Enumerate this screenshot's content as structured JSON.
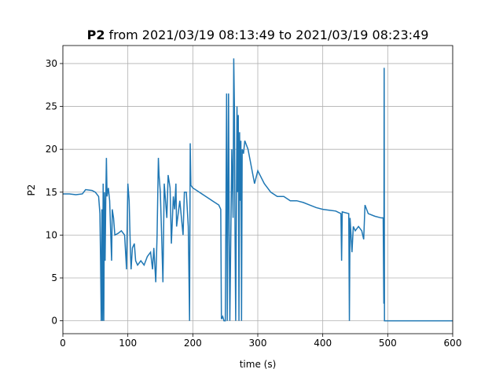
{
  "chart_data": {
    "type": "line",
    "title_bold": "P2",
    "title": "from 2021/03/19 08:13:49 to 2021/03/19 08:23:49",
    "x_label": "time (s)",
    "y_label": "P2",
    "xlim": [
      0,
      600
    ],
    "ylim": [
      -1.5,
      32.1
    ],
    "xticks": [
      0,
      100,
      200,
      300,
      400,
      500,
      600
    ],
    "yticks": [
      0,
      5,
      10,
      15,
      20,
      25,
      30
    ],
    "grid": true,
    "series": [
      {
        "color": "#1f77b4",
        "x": [
          0,
          10,
          20,
          30,
          35,
          45,
          50,
          55,
          57,
          58,
          59,
          60,
          61,
          62,
          63,
          64,
          65,
          66,
          67,
          68,
          70,
          72,
          75,
          76,
          78,
          80,
          85,
          90,
          95,
          98,
          100,
          102,
          103,
          104,
          105,
          107,
          110,
          112,
          115,
          120,
          125,
          130,
          135,
          138,
          140,
          143,
          145,
          147,
          148,
          150,
          152,
          154,
          156,
          158,
          160,
          162,
          165,
          167,
          170,
          172,
          174,
          175,
          180,
          185,
          187,
          190,
          193,
          195,
          196,
          197,
          200,
          210,
          220,
          230,
          240,
          243,
          244,
          246,
          248,
          250,
          252,
          253,
          255,
          256,
          257,
          260,
          262,
          263,
          264,
          265,
          266,
          268,
          269,
          270,
          271,
          272,
          273,
          274,
          275,
          276,
          278,
          280,
          285,
          290,
          295,
          300,
          310,
          320,
          330,
          340,
          350,
          360,
          370,
          380,
          390,
          400,
          410,
          420,
          428,
          429,
          430,
          440,
          441,
          442,
          445,
          447,
          450,
          455,
          460,
          463,
          465,
          470,
          480,
          490,
          493,
          494,
          494.5,
          495,
          500,
          600
        ],
        "values": [
          14.8,
          14.8,
          14.7,
          14.8,
          15.3,
          15.2,
          15.0,
          14.5,
          12.5,
          7,
          0,
          13,
          0,
          16,
          0,
          15,
          7,
          14,
          19,
          14.5,
          15.5,
          14,
          7,
          13,
          12,
          10,
          10.2,
          10.5,
          10,
          6,
          16,
          14,
          11,
          8,
          6,
          8.5,
          9,
          7,
          6.5,
          7,
          6.5,
          7.5,
          8,
          6,
          8.5,
          4.5,
          10,
          19,
          17,
          15,
          10,
          4.5,
          16,
          14,
          12,
          17,
          15.5,
          9,
          14.5,
          13,
          16,
          11,
          14,
          10,
          15,
          15,
          11,
          0,
          20.7,
          15.8,
          15.5,
          15,
          14.5,
          14,
          13.5,
          13,
          0.2,
          0.5,
          0,
          0,
          26.5,
          0,
          26.5,
          10,
          0,
          20,
          12,
          30.6,
          25,
          10,
          0,
          25,
          15,
          24,
          0,
          22,
          14,
          21,
          0,
          20,
          19.5,
          21,
          20,
          18,
          16,
          17.5,
          16,
          15,
          14.5,
          14.5,
          14,
          14,
          13.8,
          13.5,
          13.2,
          13,
          12.9,
          12.8,
          12.5,
          7,
          12.7,
          12.5,
          0,
          12,
          8,
          11,
          10.5,
          11,
          10.5,
          9.5,
          13.5,
          12.5,
          12.2,
          12,
          12,
          2,
          29.5,
          0,
          0,
          0
        ]
      }
    ]
  }
}
